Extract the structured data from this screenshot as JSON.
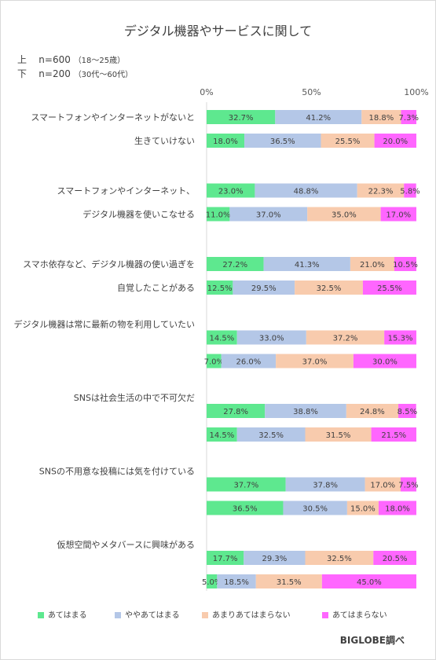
{
  "title": "デジタル機器やサービスに関して",
  "sample": [
    {
      "pos": "上",
      "n": "n=600",
      "note": "（18～25歳）"
    },
    {
      "pos": "下",
      "n": "n=200",
      "note": "（30代～60代）"
    }
  ],
  "source": "BIGLOBE調べ",
  "colors": [
    "#5ee88f",
    "#b4c7e7",
    "#f8cbad",
    "#ff66ff"
  ],
  "chart_data": {
    "type": "bar",
    "stacked": true,
    "orientation": "horizontal",
    "x_ticks": [
      "0%",
      "50%",
      "100%"
    ],
    "xlim": [
      0,
      100
    ],
    "legend_position": "bottom",
    "series": [
      {
        "name": "あてはまる"
      },
      {
        "name": "ややあてはまる"
      },
      {
        "name": "あまりあてはまらない"
      },
      {
        "name": "あてはまらない"
      }
    ],
    "groups": [
      {
        "label_lines": [
          "スマートフォンやインターネットがないと",
          "生きていけない"
        ],
        "bars": [
          [
            32.7,
            41.2,
            18.8,
            7.3
          ],
          [
            18.0,
            36.5,
            25.5,
            20.0
          ]
        ]
      },
      {
        "label_lines": [
          "スマートフォンやインターネット、",
          "デジタル機器を使いこなせる"
        ],
        "bars": [
          [
            23.0,
            48.8,
            22.3,
            5.8
          ],
          [
            11.0,
            37.0,
            35.0,
            17.0
          ]
        ]
      },
      {
        "label_lines": [
          "スマホ依存など、デジタル機器の使い過ぎを",
          "自覚したことがある"
        ],
        "bars": [
          [
            27.2,
            41.3,
            21.0,
            10.5
          ],
          [
            12.5,
            29.5,
            32.5,
            25.5
          ]
        ]
      },
      {
        "label_lines": [
          "デジタル機器は常に最新の物を利用していたい"
        ],
        "bars": [
          [
            14.5,
            33.0,
            37.2,
            15.3
          ],
          [
            7.0,
            26.0,
            37.0,
            30.0
          ]
        ]
      },
      {
        "label_lines": [
          "SNSは社会生活の中で不可欠だ"
        ],
        "bars": [
          [
            27.8,
            38.8,
            24.8,
            8.5
          ],
          [
            14.5,
            32.5,
            31.5,
            21.5
          ]
        ]
      },
      {
        "label_lines": [
          "SNSの不用意な投稿には気を付けている"
        ],
        "bars": [
          [
            37.7,
            37.8,
            17.0,
            7.5
          ],
          [
            36.5,
            30.5,
            15.0,
            18.0
          ]
        ]
      },
      {
        "label_lines": [
          "仮想空間やメタバースに興味がある"
        ],
        "bars": [
          [
            17.7,
            29.3,
            32.5,
            20.5
          ],
          [
            5.0,
            18.5,
            31.5,
            45.0
          ]
        ]
      }
    ]
  }
}
